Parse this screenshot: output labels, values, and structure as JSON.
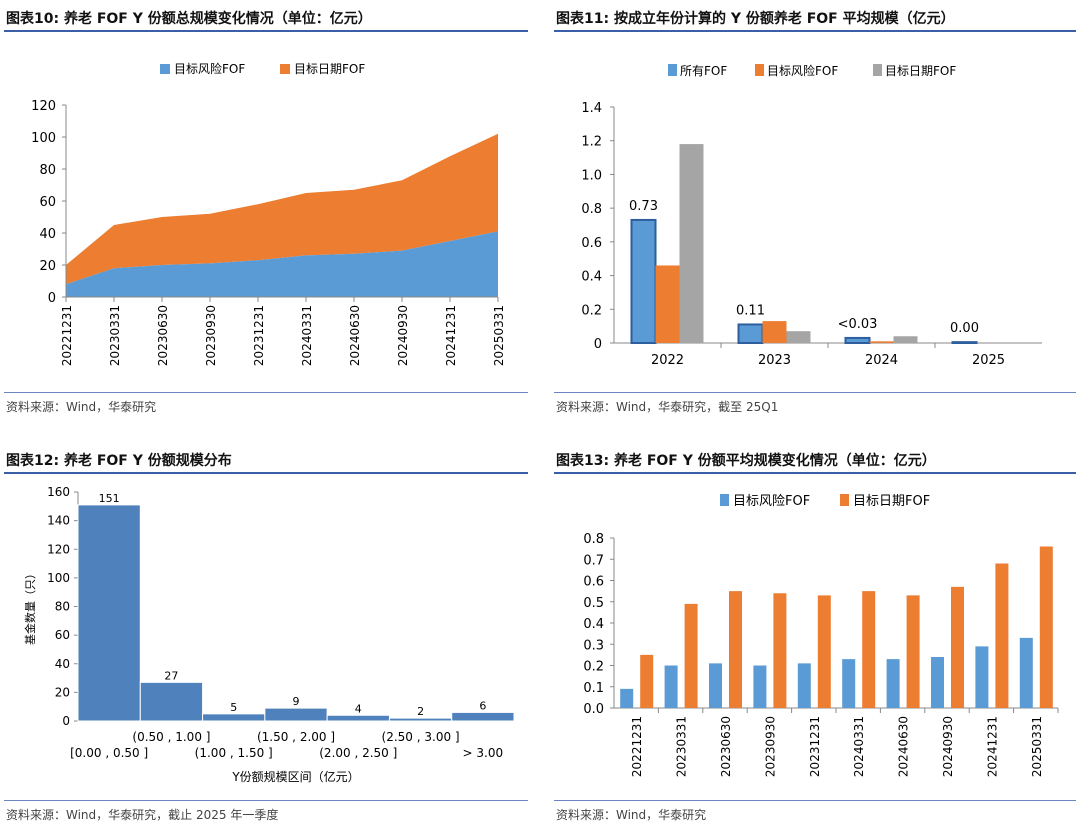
{
  "colors": {
    "blue": "#5b9bd5",
    "orange": "#ed7d31",
    "gray": "#a5a5a5",
    "bar": "#4f81bd",
    "rule": "#3a5ea8"
  },
  "charts": {
    "c10": {
      "title": "图表10:  养老 FOF Y 份额总规模变化情况（单位：亿元）",
      "source": "资料来源：Wind，华泰研究"
    },
    "c11": {
      "title": "图表11:  按成立年份计算的 Y 份额养老 FOF 平均规模（亿元）",
      "source": "资料来源：Wind，华泰研究，截至 25Q1"
    },
    "c12": {
      "title": "图表12:  养老 FOF Y 份额规模分布",
      "source": "资料来源：Wind，华泰研究，截止 2025 年一季度"
    },
    "c13": {
      "title": "图表13:  养老 FOF Y 份额平均规模变化情况（单位：亿元）",
      "source": "资料来源：Wind，华泰研究"
    }
  },
  "chart_data": [
    {
      "type": "area",
      "stacked": true,
      "categories": [
        "20221231",
        "20230331",
        "20230630",
        "20230930",
        "20231231",
        "20240331",
        "20240630",
        "20240930",
        "20241231",
        "20250331"
      ],
      "series": [
        {
          "name": "目标风险FOF",
          "values": [
            8,
            18,
            20,
            21,
            23,
            26,
            27,
            29,
            35,
            41
          ]
        },
        {
          "name": "目标日期FOF",
          "values": [
            12,
            27,
            30,
            31,
            35,
            39,
            40,
            44,
            53,
            61
          ]
        }
      ],
      "ylim": [
        0,
        120
      ],
      "yticks": [
        0,
        20,
        40,
        60,
        80,
        100,
        120
      ],
      "legend": "top-center",
      "grid": false
    },
    {
      "type": "bar",
      "categories": [
        "2022",
        "2023",
        "2024",
        "2025"
      ],
      "series": [
        {
          "name": "所有FOF",
          "values": [
            0.73,
            0.11,
            0.03,
            0.005
          ]
        },
        {
          "name": "目标风险FOF",
          "values": [
            0.46,
            0.13,
            0.01,
            0
          ]
        },
        {
          "name": "目标日期FOF",
          "values": [
            1.18,
            0.07,
            0.04,
            0
          ]
        }
      ],
      "data_labels": [
        "0.73",
        "0.11",
        "<0.03",
        "0.00"
      ],
      "ylim": [
        0,
        1.4
      ],
      "yticks": [
        0,
        0.2,
        0.4,
        0.6,
        0.8,
        1.0,
        1.2,
        1.4
      ],
      "ytick_labels": [
        "0",
        "0.2",
        "0.4",
        "0.6",
        "0.8",
        "1.0",
        "1.2",
        "1.4"
      ],
      "legend": "top-center",
      "grid": false
    },
    {
      "type": "bar",
      "histogram": true,
      "categories": [
        "[0.00 , 0.50 ]",
        "(0.50 , 1.00 ]",
        "(1.00 , 1.50 ]",
        "(1.50 , 2.00 ]",
        "(2.00 , 2.50 ]",
        "(2.50 , 3.00 ]",
        "> 3.00"
      ],
      "values": [
        151,
        27,
        5,
        9,
        4,
        2,
        6
      ],
      "xlabel": "Y份额规模区间（亿元）",
      "ylabel": "基金数量（只）",
      "ylim": [
        0,
        160
      ],
      "yticks": [
        0,
        20,
        40,
        60,
        80,
        100,
        120,
        140,
        160
      ],
      "grid": false
    },
    {
      "type": "bar",
      "categories": [
        "20221231",
        "20230331",
        "20230630",
        "20230930",
        "20231231",
        "20240331",
        "20240630",
        "20240930",
        "20241231",
        "20250331"
      ],
      "series": [
        {
          "name": "目标风险FOF",
          "values": [
            0.09,
            0.2,
            0.21,
            0.2,
            0.21,
            0.23,
            0.23,
            0.24,
            0.29,
            0.33
          ]
        },
        {
          "name": "目标日期FOF",
          "values": [
            0.25,
            0.49,
            0.55,
            0.54,
            0.53,
            0.55,
            0.53,
            0.57,
            0.68,
            0.76
          ]
        }
      ],
      "ylim": [
        0,
        0.8
      ],
      "yticks": [
        0,
        0.1,
        0.2,
        0.3,
        0.4,
        0.5,
        0.6,
        0.7,
        0.8
      ],
      "ytick_labels": [
        "0.0",
        "0.1",
        "0.2",
        "0.3",
        "0.4",
        "0.5",
        "0.6",
        "0.7",
        "0.8"
      ],
      "legend": "top-center",
      "grid": false
    }
  ]
}
